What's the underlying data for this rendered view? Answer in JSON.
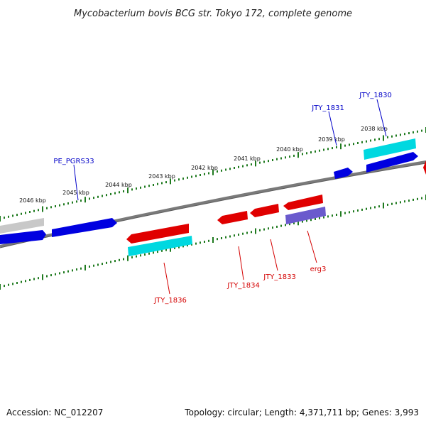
{
  "title": "Mycobacterium bovis BCG str. Tokyo 172, complete genome",
  "footer": {
    "accession": "Accession: NC_012207",
    "topology": "Topology: circular; Length: 4,371,711 bp; Genes: 3,993"
  },
  "colors": {
    "backbone": "#7a7a7a",
    "tick": "#1f7a1f",
    "forward_gene": "#0000e0",
    "reverse_gene": "#e00000",
    "cds": "#00d8e0",
    "misc": "#6a5acd",
    "faded": "#c8c8c8",
    "forward_label": "#0000c8",
    "reverse_label": "#d40000"
  },
  "scale_labels": [
    "2046 kbp",
    "2045 kbp",
    "2044 kbp",
    "2043 kbp",
    "2042 kbp",
    "2041 kbp",
    "2040 kbp",
    "2039 kbp",
    "2038 kbp"
  ],
  "gene_labels": [
    {
      "id": "PE_PGRS33",
      "text": "PE_PGRS33",
      "strand": "forward"
    },
    {
      "id": "JTY_1831",
      "text": "JTY_1831",
      "strand": "forward"
    },
    {
      "id": "JTY_1830",
      "text": "JTY_1830",
      "strand": "forward"
    },
    {
      "id": "JTY_1836",
      "text": "JTY_1836",
      "strand": "reverse"
    },
    {
      "id": "JTY_1834",
      "text": "JTY_1834",
      "strand": "reverse"
    },
    {
      "id": "JTY_1833",
      "text": "JTY_1833",
      "strand": "reverse"
    },
    {
      "id": "erg3",
      "text": "erg3",
      "strand": "reverse"
    }
  ]
}
